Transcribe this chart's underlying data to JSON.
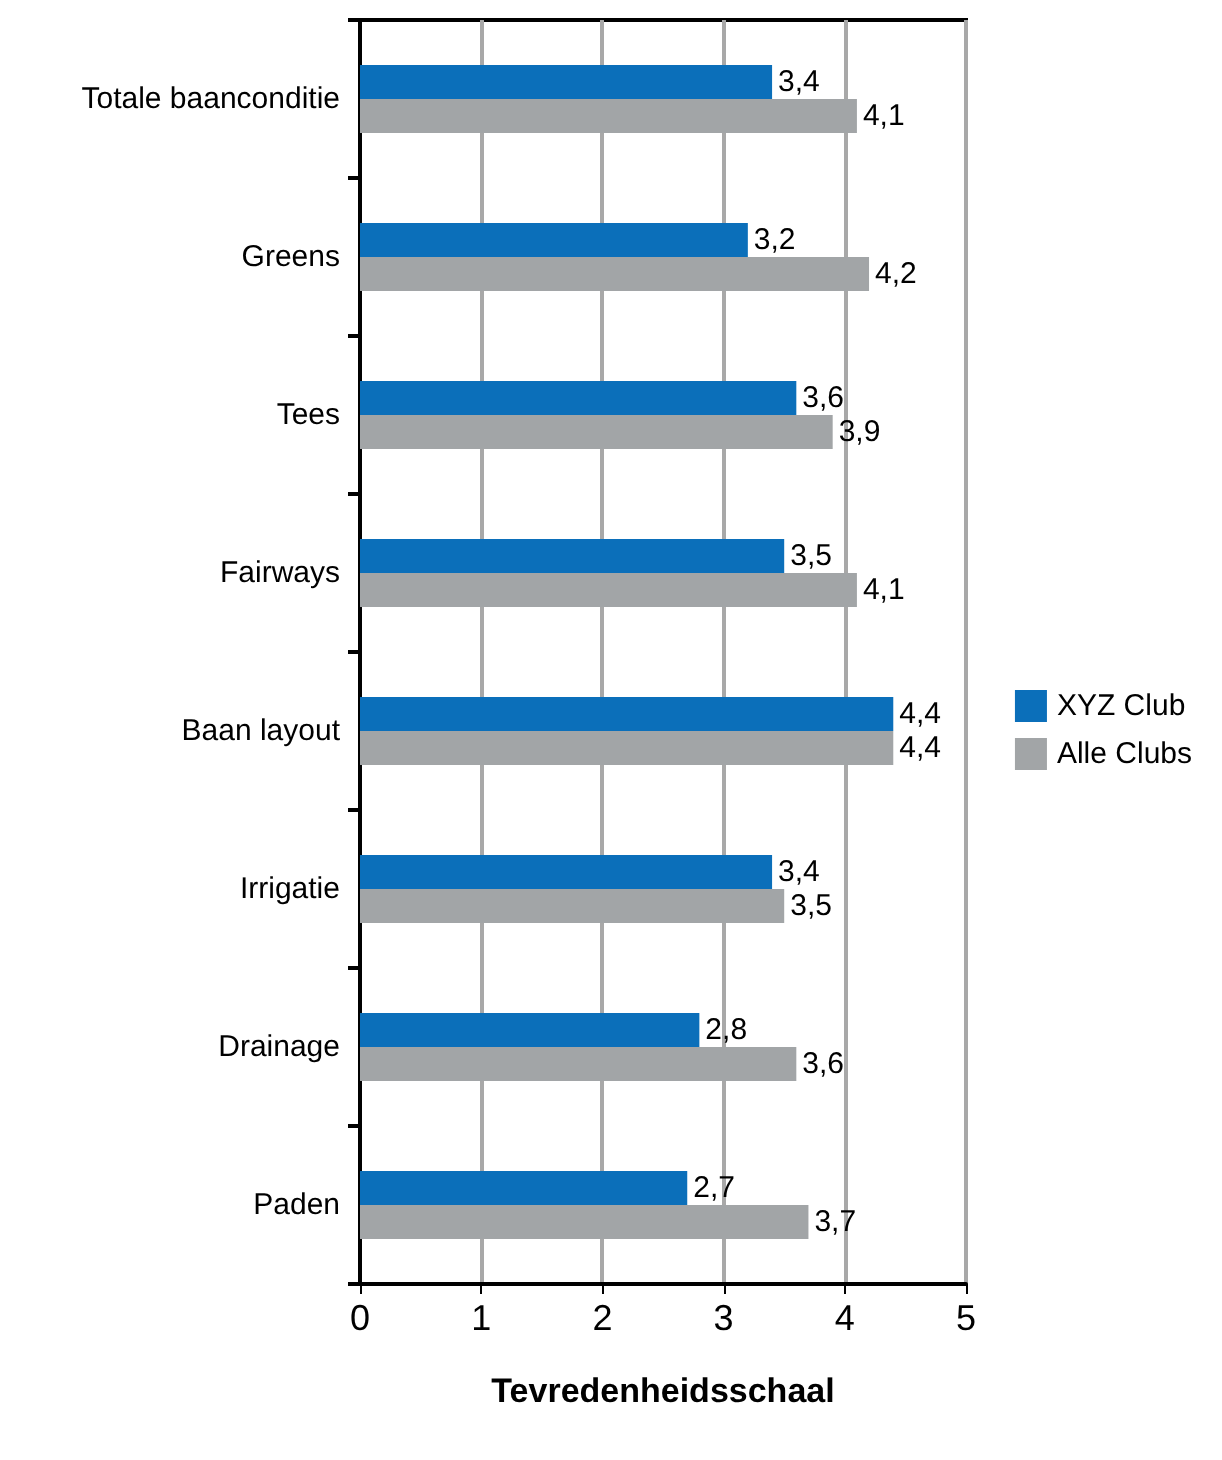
{
  "chart_data": {
    "type": "bar",
    "orientation": "horizontal",
    "xlabel": "Tevredenheidsschaal",
    "categories": [
      "Totale baanconditie",
      "Greens",
      "Tees",
      "Fairways",
      "Baan layout",
      "Irrigatie",
      "Drainage",
      "Paden"
    ],
    "series": [
      {
        "name": "XYZ Club",
        "color": "#0b6fba",
        "values": [
          3.4,
          3.2,
          3.6,
          3.5,
          4.4,
          3.4,
          2.8,
          2.7
        ],
        "value_labels": [
          "3,4",
          "3,2",
          "3,6",
          "3,5",
          "4,4",
          "3,4",
          "2,8",
          "2,7"
        ]
      },
      {
        "name": "Alle Clubs",
        "color": "#a2a5a7",
        "values": [
          4.1,
          4.2,
          3.9,
          4.1,
          4.4,
          3.5,
          3.6,
          3.7
        ],
        "value_labels": [
          "4,1",
          "4,2",
          "3,9",
          "4,1",
          "4,4",
          "3,5",
          "3,6",
          "3,7"
        ]
      }
    ],
    "xlim": [
      0,
      5
    ],
    "xticks": [
      0,
      1,
      2,
      3,
      4,
      5
    ],
    "grid": "x",
    "legend": "right"
  }
}
